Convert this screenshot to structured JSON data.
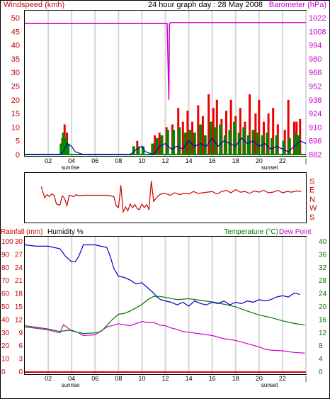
{
  "title": "24 hour graph day : 28 May 2008",
  "labels": {
    "windspeed": "Windspeed (kmh)",
    "barometer": "Barometer (hPa)",
    "rainfall": "Rainfall (mm)",
    "humidity": "Humidity %",
    "temperature": "Temperature (°C)",
    "dewpoint": "Dew Point",
    "sunrise": "sunrise",
    "sunset": "sunset"
  },
  "colors": {
    "wind_avg": "#0000cc",
    "wind_gust": "#ee0000",
    "wind_bar_green": "#008800",
    "barometer": "#cc00cc",
    "direction": "#cc0000",
    "humidity": "#0000cc",
    "temperature": "#007700",
    "dewpoint": "#cc00cc",
    "rainfall": "#cc0000",
    "grid": "#d6d6d6",
    "panel_border": "#000000",
    "left_axis": "#cc0000",
    "right_axis_top": "#cc00cc",
    "right_axis_bottom": "#007700"
  },
  "chart_data": [
    {
      "type": "line",
      "panel": "wind_barometer",
      "x_ticks": [
        "02",
        "04",
        "06",
        "08",
        "10",
        "12",
        "14",
        "16",
        "18",
        "20",
        "22",
        "|"
      ],
      "y_left_ticks": [
        "0",
        "5",
        "10",
        "15",
        "20",
        "25",
        "30",
        "35",
        "40",
        "45",
        "50"
      ],
      "y_right_ticks": [
        "882",
        "896",
        "910",
        "924",
        "938",
        "952",
        "966",
        "980",
        "994",
        "1008",
        "1022"
      ],
      "ylim_left": [
        0,
        50
      ],
      "ylim_right": [
        882,
        1022
      ],
      "xlim": [
        0,
        24
      ],
      "sunrise_hour": 3.9,
      "sunset_hour": 20.9,
      "barometer": {
        "x": [
          0,
          12.15,
          12.3,
          12.35,
          12.45,
          24
        ],
        "y": [
          1016,
          1016,
          938,
          1016,
          1017,
          1017
        ]
      },
      "wind_avg": {
        "x": [
          0,
          3.0,
          3.3,
          3.6,
          4.0,
          4.3,
          5.0,
          9.0,
          9.3,
          9.6,
          10.0,
          10.3,
          11.0,
          11.5,
          12.0,
          12.5,
          13.0,
          13.5,
          14.0,
          14.5,
          15.0,
          15.5,
          16.0,
          16.5,
          17.0,
          17.5,
          18.0,
          18.5,
          19.0,
          19.5,
          20.0,
          20.5,
          21.0,
          21.5,
          22.0,
          22.5,
          23.0,
          23.5,
          24.0
        ],
        "y": [
          0,
          0,
          1,
          4,
          3,
          1,
          0,
          0,
          1,
          2,
          3,
          1,
          0,
          3,
          4,
          2,
          3,
          2,
          5,
          3,
          4,
          3,
          6,
          3,
          5,
          4,
          3,
          6,
          4,
          5,
          3,
          4,
          2,
          3,
          2,
          1,
          3,
          5,
          4
        ]
      },
      "wind_gust_bars": {
        "x": [
          3.2,
          3.4,
          3.6,
          9.6,
          11.1,
          11.5,
          12.1,
          12.6,
          13.1,
          13.5,
          13.9,
          14.3,
          14.8,
          15.2,
          15.7,
          16.1,
          16.4,
          16.8,
          17.2,
          17.6,
          18.0,
          18.4,
          18.8,
          19.2,
          19.7,
          20.0,
          20.4,
          20.8,
          21.2,
          21.6,
          22.2,
          22.5,
          23.0,
          23.2,
          23.5
        ],
        "y": [
          6,
          11,
          8,
          5,
          7,
          8,
          10,
          11,
          17,
          12,
          16,
          12,
          18,
          14,
          22,
          17,
          20,
          13,
          16,
          20,
          14,
          17,
          12,
          22,
          15,
          20,
          12,
          15,
          17,
          11,
          9,
          20,
          12,
          12,
          13
        ]
      },
      "wind_green_bars": {
        "x": [
          3.1,
          3.3,
          3.5,
          3.7,
          9.3,
          9.7,
          10.1,
          10.9,
          11.3,
          11.7,
          12.2,
          12.7,
          13.2,
          13.7,
          14.1,
          14.5,
          15.0,
          15.4,
          15.9,
          16.3,
          16.7,
          17.1,
          17.5,
          17.9,
          18.3,
          18.7,
          19.1,
          19.5,
          19.9,
          20.3,
          20.7,
          21.1,
          21.5,
          22.1,
          22.6,
          23.1,
          23.4
        ],
        "y": [
          4,
          8,
          6,
          4,
          3,
          3,
          3,
          4,
          6,
          7,
          9,
          9,
          10,
          8,
          9,
          8,
          11,
          7,
          12,
          10,
          11,
          7,
          9,
          12,
          8,
          10,
          7,
          9,
          8,
          7,
          8,
          6,
          7,
          5,
          6,
          8,
          7
        ]
      }
    },
    {
      "type": "line",
      "panel": "wind_direction",
      "y_ticks": [
        "S",
        "E",
        "N",
        "W",
        "S"
      ],
      "series": [
        {
          "x": [
            1.4,
            1.7,
            1.9,
            2.1,
            2.3,
            2.5,
            2.7,
            3.0,
            3.2,
            3.4,
            3.6,
            3.8,
            4.0,
            4.2,
            4.4,
            4.6,
            5.0,
            7.0,
            7.6,
            7.8,
            8.0,
            8.2,
            8.4,
            8.6,
            8.8,
            9.0,
            9.2,
            9.4,
            9.6,
            9.8,
            10.0,
            10.2,
            10.4,
            10.6,
            10.8,
            11.0,
            11.2,
            11.4,
            11.6,
            12.0,
            12.4,
            12.8,
            13.2,
            13.6,
            14.0,
            14.4,
            14.8,
            15.2,
            15.6,
            16.0,
            16.4,
            16.8,
            17.2,
            17.6,
            18.0,
            18.4,
            18.8,
            19.2,
            19.6,
            20.0,
            20.4,
            20.8,
            21.2,
            21.6,
            22.0,
            22.4,
            22.8,
            23.2,
            23.6
          ],
          "y": [
            5.8,
            4.0,
            4.5,
            4.2,
            4.6,
            4.4,
            3.0,
            2.8,
            4.3,
            3.9,
            2.7,
            4.4,
            4.3,
            4.2,
            4.5,
            4.3,
            4.4,
            4.4,
            4.2,
            2.7,
            2.4,
            6.0,
            1.7,
            2.5,
            1.9,
            3.0,
            2.4,
            2.9,
            2.2,
            2.1,
            3.0,
            2.4,
            2.9,
            2.1,
            6.7,
            3.4,
            3.9,
            4.3,
            4.6,
            4.7,
            4.4,
            4.8,
            4.5,
            4.7,
            4.6,
            5.0,
            4.7,
            4.8,
            4.9,
            5.0,
            4.6,
            5.0,
            5.2,
            4.8,
            5.3,
            4.9,
            5.0,
            4.7,
            5.1,
            4.9,
            5.2,
            4.8,
            4.9,
            5.2,
            4.8,
            5.0,
            4.9,
            5.1,
            5.0
          ]
        }
      ]
    },
    {
      "type": "line",
      "panel": "rain_humidity_temperature",
      "x_ticks": [
        "02",
        "04",
        "06",
        "08",
        "10",
        "12",
        "14",
        "16",
        "18",
        "20",
        "22",
        "|"
      ],
      "y_rain_ticks": [
        "0",
        "3",
        "6",
        "9",
        "12",
        "15",
        "18",
        "21",
        "24",
        "27",
        "30"
      ],
      "y_humidity_ticks": [
        "0",
        "10",
        "20",
        "30",
        "40",
        "50",
        "60",
        "70",
        "80",
        "90",
        "100"
      ],
      "y_temp_ticks": [
        "0",
        "4",
        "8",
        "12",
        "16",
        "20",
        "24",
        "28",
        "32",
        "36",
        "40"
      ],
      "ylim_humidity": [
        0,
        100
      ],
      "ylim_temp": [
        0,
        40
      ],
      "ylim_rain": [
        0,
        30
      ],
      "humidity": {
        "x": [
          0,
          1.0,
          2.0,
          3.0,
          3.5,
          4.0,
          4.3,
          4.6,
          5.0,
          6.0,
          6.5,
          7.0,
          7.3,
          7.6,
          8.0,
          8.5,
          9.0,
          9.5,
          10.0,
          10.5,
          11.0,
          11.3,
          11.6,
          12.0,
          12.5,
          13.0,
          13.5,
          14.0,
          14.5,
          15.0,
          15.5,
          16.0,
          16.5,
          17.0,
          17.5,
          18.0,
          18.5,
          19.0,
          19.5,
          20.0,
          20.5,
          21.0,
          21.5,
          22.0,
          22.5,
          23.0,
          23.5
        ],
        "y": [
          97,
          96,
          96,
          94,
          88,
          84,
          84,
          88,
          97,
          97,
          96,
          95,
          88,
          79,
          73,
          72,
          70,
          67,
          68,
          64,
          60,
          57,
          55,
          54,
          53,
          51,
          53,
          50,
          54,
          52,
          51,
          53,
          52,
          54,
          51,
          53,
          52,
          54,
          53,
          55,
          54,
          55,
          57,
          58,
          57,
          60,
          59
        ]
      },
      "temperature": {
        "x": [
          0,
          1.0,
          2.0,
          3.0,
          3.5,
          4.0,
          4.5,
          5.0,
          6.0,
          6.5,
          7.0,
          7.5,
          8.0,
          8.5,
          9.0,
          9.5,
          10.0,
          10.5,
          11.0,
          11.5,
          12.0,
          13.0,
          14.0,
          15.0,
          16.0,
          17.0,
          18.0,
          19.0,
          20.0,
          21.0,
          22.0,
          23.0,
          23.9
        ],
        "y": [
          14,
          13.5,
          13,
          12.2,
          12.5,
          12.6,
          12,
          11.6,
          11.8,
          12.2,
          14,
          16,
          17.5,
          17.8,
          18.5,
          19.5,
          20.5,
          22,
          23,
          23,
          22.7,
          22,
          22.3,
          21.8,
          21.3,
          20.6,
          19.8,
          18.5,
          17.3,
          16.5,
          15.5,
          14.7,
          14.2
        ]
      },
      "dewpoint": {
        "x": [
          0,
          1.0,
          2.0,
          3.0,
          3.3,
          3.6,
          4.0,
          4.5,
          5.0,
          6.0,
          7.0,
          8.0,
          9.0,
          10.0,
          10.5,
          11.0,
          11.5,
          12.0,
          12.5,
          13.0,
          13.5,
          14.0,
          15.0,
          16.0,
          17.0,
          18.0,
          19.0,
          20.0,
          20.5,
          21.0,
          22.0,
          23.0,
          23.9
        ],
        "y": [
          13.6,
          13.2,
          12.7,
          11.8,
          14.3,
          13.5,
          12.4,
          12.0,
          11.0,
          11.2,
          13.6,
          14.6,
          14.0,
          15.3,
          15.0,
          15.0,
          14.2,
          14.0,
          13.3,
          12.9,
          12.2,
          12.0,
          11.5,
          11.0,
          10.0,
          9.5,
          8.5,
          7.5,
          6.8,
          6.5,
          6.3,
          5.8,
          5.6
        ]
      },
      "rainfall": {
        "x": [
          0,
          24
        ],
        "y": [
          0,
          0
        ]
      }
    }
  ]
}
